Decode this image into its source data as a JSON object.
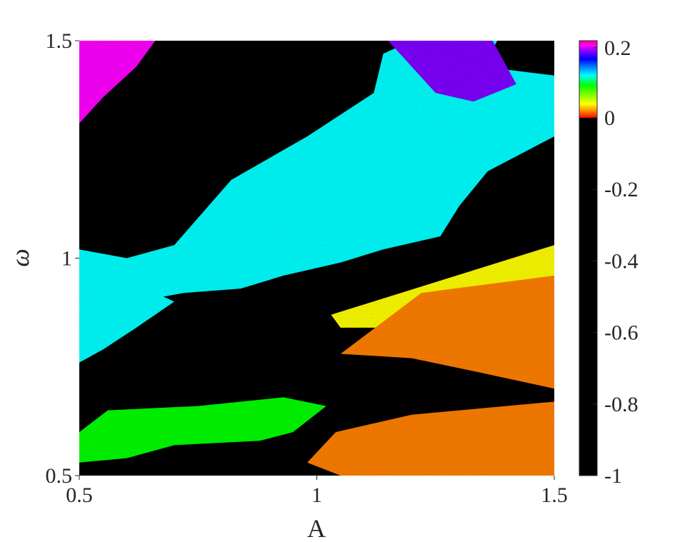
{
  "chart_data": {
    "type": "heatmap",
    "xlabel": "A",
    "ylabel": "ω",
    "xlim": [
      0.5,
      1.5
    ],
    "ylim": [
      0.5,
      1.5
    ],
    "x_ticks": [
      0.5,
      1,
      1.5
    ],
    "x_tick_labels": [
      "0.5",
      "1",
      "1.5"
    ],
    "y_ticks": [
      0.5,
      1,
      1.5
    ],
    "y_tick_labels": [
      "0.5",
      "1",
      "1.5"
    ],
    "colorbar": {
      "range": [
        -1,
        0.22
      ],
      "ticks": [
        0.2,
        0,
        -0.2,
        -0.4,
        -0.6,
        -0.8,
        -1
      ],
      "tick_labels": [
        "0.2",
        "0",
        "-0.2",
        "-0.4",
        "-0.6",
        "-0.8",
        "-1"
      ],
      "negative_color": "#000000",
      "positive_colormap": [
        "#ff0000",
        "#ff8000",
        "#ffff00",
        "#80ff00",
        "#00ff00",
        "#00ffff",
        "#0080ff",
        "#0000ff",
        "#8000ff",
        "#ff00ff",
        "#ff0080"
      ]
    },
    "regions": [
      {
        "value": 0.2,
        "polygon": [
          [
            0.5,
            1.5
          ],
          [
            0.66,
            1.5
          ],
          [
            0.62,
            1.44
          ],
          [
            0.55,
            1.37
          ],
          [
            0.5,
            1.31
          ]
        ]
      },
      {
        "value": 0.12,
        "polygon": [
          [
            0.7,
            1.03
          ],
          [
            0.82,
            1.18
          ],
          [
            0.98,
            1.28
          ],
          [
            1.12,
            1.38
          ],
          [
            1.14,
            1.47
          ],
          [
            1.2,
            1.5
          ],
          [
            1.38,
            1.5
          ],
          [
            1.35,
            1.44
          ],
          [
            1.5,
            1.42
          ],
          [
            1.5,
            1.28
          ],
          [
            1.36,
            1.2
          ],
          [
            1.3,
            1.12
          ],
          [
            1.26,
            1.05
          ],
          [
            1.14,
            1.02
          ],
          [
            1.05,
            0.99
          ],
          [
            0.93,
            0.96
          ],
          [
            0.84,
            0.93
          ],
          [
            0.72,
            0.92
          ],
          [
            0.62,
            0.9
          ],
          [
            0.55,
            0.88
          ],
          [
            0.5,
            0.86
          ],
          [
            0.5,
            1.02
          ],
          [
            0.6,
            1.0
          ]
        ]
      },
      {
        "value": 0.18,
        "polygon": [
          [
            1.15,
            1.5
          ],
          [
            1.37,
            1.5
          ],
          [
            1.42,
            1.4
          ],
          [
            1.33,
            1.36
          ],
          [
            1.25,
            1.38
          ]
        ]
      },
      {
        "value": 0.1,
        "polygon": [
          [
            0.5,
            0.92
          ],
          [
            0.62,
            0.94
          ],
          [
            0.7,
            0.9
          ],
          [
            0.62,
            0.84
          ],
          [
            0.55,
            0.79
          ],
          [
            0.5,
            0.76
          ]
        ]
      },
      {
        "value": 0.04,
        "polygon": [
          [
            1.03,
            0.87
          ],
          [
            1.5,
            1.03
          ],
          [
            1.5,
            0.94
          ],
          [
            1.3,
            0.88
          ],
          [
            1.15,
            0.84
          ],
          [
            1.05,
            0.84
          ]
        ]
      },
      {
        "value": 0.03,
        "polygon": [
          [
            1.05,
            0.78
          ],
          [
            1.22,
            0.92
          ],
          [
            1.5,
            0.96
          ],
          [
            1.5,
            0.7
          ],
          [
            1.33,
            0.74
          ],
          [
            1.2,
            0.77
          ]
        ]
      },
      {
        "value": 0.02,
        "polygon": [
          [
            0.98,
            0.53
          ],
          [
            1.04,
            0.6
          ],
          [
            1.2,
            0.64
          ],
          [
            1.5,
            0.67
          ],
          [
            1.5,
            0.5
          ],
          [
            1.05,
            0.5
          ]
        ]
      },
      {
        "value": 0.08,
        "polygon": [
          [
            0.5,
            0.6
          ],
          [
            0.56,
            0.65
          ],
          [
            0.75,
            0.66
          ],
          [
            0.93,
            0.68
          ],
          [
            1.02,
            0.66
          ],
          [
            0.95,
            0.6
          ],
          [
            0.88,
            0.58
          ],
          [
            0.7,
            0.57
          ],
          [
            0.6,
            0.54
          ],
          [
            0.5,
            0.53
          ]
        ]
      }
    ]
  }
}
